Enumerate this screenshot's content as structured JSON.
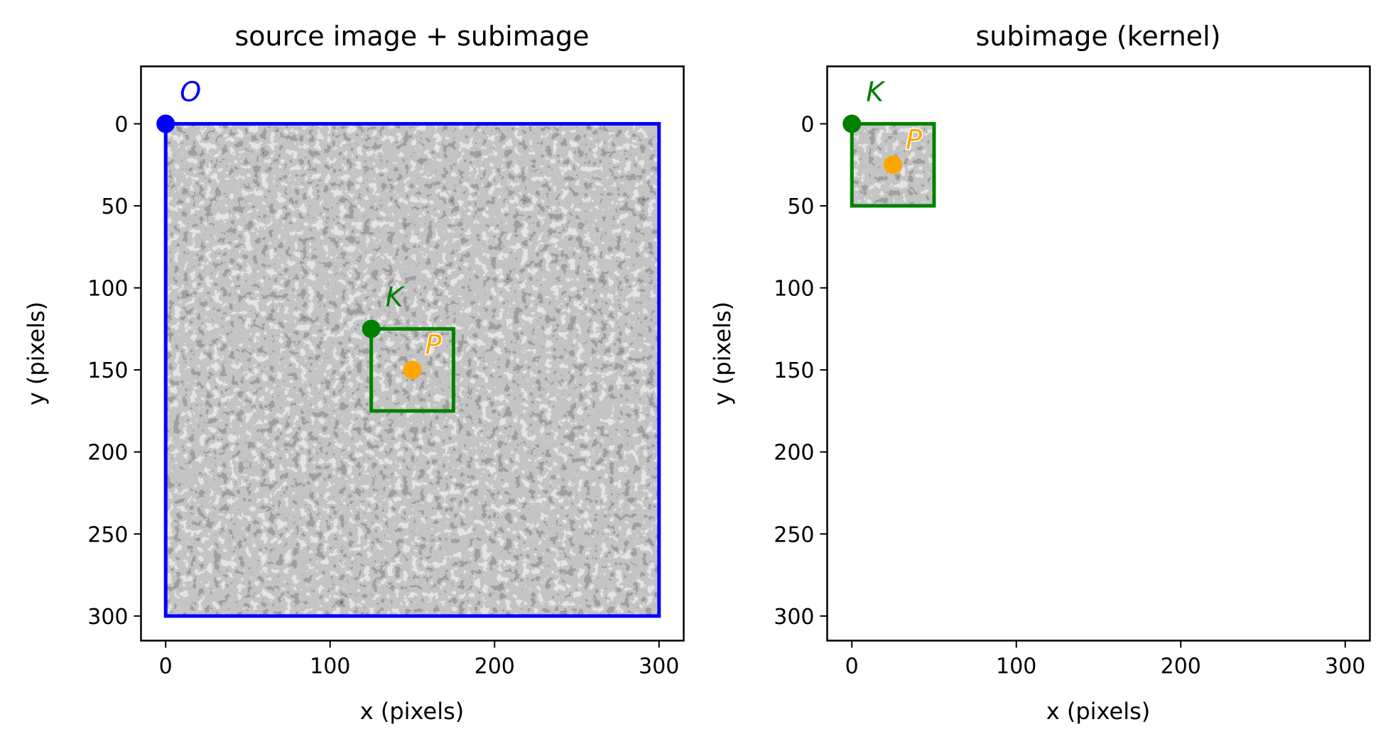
{
  "chart_data": [
    {
      "type": "scatter",
      "title": "source image + subimage",
      "xlabel": "x (pixels)",
      "ylabel": "y (pixels)",
      "xlim": [
        -15,
        315
      ],
      "ylim": [
        315,
        -35
      ],
      "y_inverted": true,
      "x_ticks": [
        0,
        100,
        200,
        300
      ],
      "y_ticks": [
        0,
        50,
        100,
        150,
        200,
        250,
        300
      ],
      "x_tick_labels": [
        "0",
        "100",
        "200",
        "300"
      ],
      "y_tick_labels": [
        "0",
        "50",
        "100",
        "150",
        "200",
        "250",
        "300"
      ],
      "background": "grayscale speckled texture image",
      "rectangles": [
        {
          "x0": 0,
          "y0": 0,
          "x1": 300,
          "y1": 300,
          "color": "#0000ff"
        },
        {
          "x0": 125,
          "y0": 125,
          "x1": 175,
          "y1": 175,
          "color": "#008000"
        }
      ],
      "points": [
        {
          "label": "O",
          "x": 0,
          "y": 0,
          "color": "#0000ff"
        },
        {
          "label": "K",
          "x": 125,
          "y": 125,
          "color": "#008000"
        },
        {
          "label": "P",
          "x": 150,
          "y": 150,
          "color": "#ffa500"
        }
      ],
      "grid": false
    },
    {
      "type": "scatter",
      "title": "subimage (kernel)",
      "xlabel": "x (pixels)",
      "ylabel": "y (pixels)",
      "xlim": [
        -15,
        315
      ],
      "ylim": [
        315,
        -35
      ],
      "y_inverted": true,
      "x_ticks": [
        0,
        100,
        200,
        300
      ],
      "y_ticks": [
        0,
        50,
        100,
        150,
        200,
        250,
        300
      ],
      "x_tick_labels": [
        "0",
        "100",
        "200",
        "300"
      ],
      "y_tick_labels": [
        "0",
        "50",
        "100",
        "150",
        "200",
        "250",
        "300"
      ],
      "background": "grayscale speckled texture subimage",
      "rectangles": [
        {
          "x0": 0,
          "y0": 0,
          "x1": 50,
          "y1": 50,
          "color": "#008000"
        }
      ],
      "points": [
        {
          "label": "K",
          "x": 0,
          "y": 0,
          "color": "#008000"
        },
        {
          "label": "P",
          "x": 25,
          "y": 25,
          "color": "#ffa500"
        }
      ],
      "grid": false
    }
  ]
}
